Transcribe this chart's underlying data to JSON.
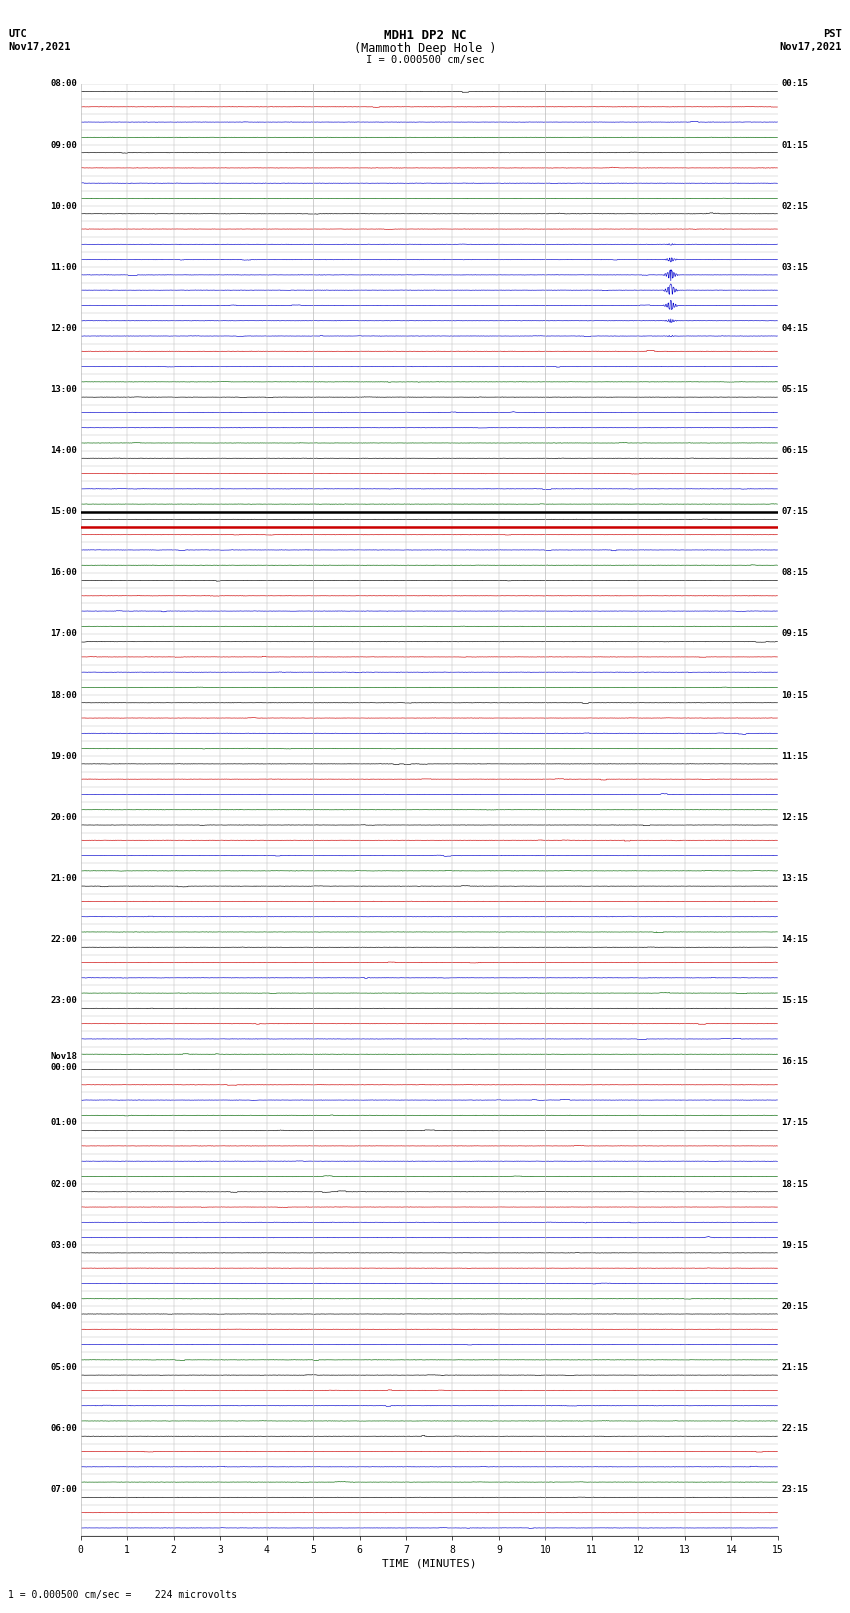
{
  "title_line1": "MDH1 DP2 NC",
  "title_line2": "(Mammoth Deep Hole )",
  "title_scale": "I = 0.000500 cm/sec",
  "left_label_top": "UTC",
  "left_label_date": "Nov17,2021",
  "right_label_top": "PST",
  "right_label_date": "Nov17,2021",
  "bottom_label": "TIME (MINUTES)",
  "footer_text": "1 = 0.000500 cm/sec =    224 microvolts",
  "xlabel_ticks": [
    0,
    1,
    2,
    3,
    4,
    5,
    6,
    7,
    8,
    9,
    10,
    11,
    12,
    13,
    14,
    15
  ],
  "utc_labels": [
    [
      "08:00",
      0
    ],
    [
      "09:00",
      4
    ],
    [
      "10:00",
      8
    ],
    [
      "11:00",
      12
    ],
    [
      "12:00",
      16
    ],
    [
      "13:00",
      20
    ],
    [
      "14:00",
      24
    ],
    [
      "15:00",
      28
    ],
    [
      "16:00",
      32
    ],
    [
      "17:00",
      36
    ],
    [
      "18:00",
      40
    ],
    [
      "19:00",
      44
    ],
    [
      "20:00",
      48
    ],
    [
      "21:00",
      52
    ],
    [
      "22:00",
      56
    ],
    [
      "23:00",
      60
    ],
    [
      "Nov18\n00:00",
      64
    ],
    [
      "01:00",
      68
    ],
    [
      "02:00",
      72
    ],
    [
      "03:00",
      76
    ],
    [
      "04:00",
      80
    ],
    [
      "05:00",
      84
    ],
    [
      "06:00",
      88
    ],
    [
      "07:00",
      92
    ]
  ],
  "pst_labels": [
    [
      "00:15",
      0
    ],
    [
      "01:15",
      4
    ],
    [
      "02:15",
      8
    ],
    [
      "03:15",
      12
    ],
    [
      "04:15",
      16
    ],
    [
      "05:15",
      20
    ],
    [
      "06:15",
      24
    ],
    [
      "07:15",
      28
    ],
    [
      "08:15",
      32
    ],
    [
      "09:15",
      36
    ],
    [
      "10:15",
      40
    ],
    [
      "11:15",
      44
    ],
    [
      "12:15",
      48
    ],
    [
      "13:15",
      52
    ],
    [
      "14:15",
      56
    ],
    [
      "15:15",
      60
    ],
    [
      "16:15",
      64
    ],
    [
      "17:15",
      68
    ],
    [
      "18:15",
      72
    ],
    [
      "19:15",
      76
    ],
    [
      "20:15",
      80
    ],
    [
      "21:15",
      84
    ],
    [
      "22:15",
      88
    ],
    [
      "23:15",
      92
    ]
  ],
  "n_rows": 95,
  "n_minutes": 15,
  "background_color": "#ffffff",
  "trace_color_black": "#000000",
  "trace_color_red": "#cc0000",
  "trace_color_blue": "#0000cc",
  "trace_color_green": "#006600",
  "grid_color_minor": "#bbbbbb",
  "grid_color_major": "#888888",
  "separator_row": 28,
  "noise_amplitude": 0.018,
  "event1_rows": [
    10,
    11,
    12,
    13,
    14,
    15,
    16
  ],
  "event1_col": 12.7,
  "event1_amplitudes": [
    0.05,
    0.15,
    0.38,
    0.42,
    0.35,
    0.12,
    0.05
  ],
  "event2_row": 21,
  "event2_col": 9.3,
  "event2_amplitude": 0.06,
  "event3_row": 75,
  "event3_col": 13.5,
  "event3_amplitude": 0.08
}
